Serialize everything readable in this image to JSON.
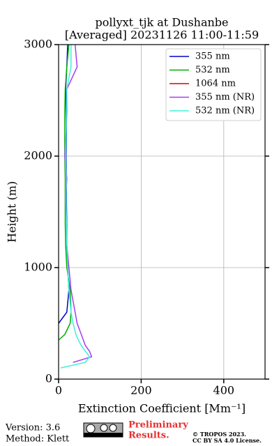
{
  "chart_data": {
    "type": "line",
    "title": "pollyxt_tjk at Dushanbe",
    "subtitle": "[Averaged] 20231126 11:00-11:59",
    "x_label": "Extinction Coefficient [Mm⁻¹]",
    "y_label": "Height (m)",
    "heights": [
      100,
      150,
      200,
      250,
      300,
      350,
      400,
      500,
      600,
      800,
      1000,
      1200,
      1400,
      1600,
      1800,
      2000,
      2200,
      2400,
      2600,
      2800,
      3000
    ],
    "series": [
      {
        "name": "355 nm",
        "color": "#0000cc",
        "values": [
          null,
          null,
          null,
          null,
          null,
          null,
          null,
          0,
          20,
          25,
          22,
          20,
          20,
          19,
          19,
          18,
          19,
          18,
          17,
          20,
          22
        ]
      },
      {
        "name": "532 nm",
        "color": "#00b000",
        "values": [
          null,
          null,
          null,
          null,
          null,
          0,
          15,
          28,
          30,
          28,
          20,
          17,
          16,
          16,
          16,
          15,
          15,
          15,
          16,
          20,
          25
        ]
      },
      {
        "name": "1064 nm",
        "color": "#e00000",
        "values": [
          null,
          null,
          null,
          null,
          null,
          null,
          null,
          null,
          null,
          null,
          null,
          null,
          null,
          null,
          null,
          null,
          null,
          null,
          null,
          null,
          null
        ]
      },
      {
        "name": "355 nm (NR)",
        "color": "#a040f0",
        "values": [
          null,
          35,
          80,
          75,
          65,
          60,
          55,
          45,
          40,
          30,
          25,
          20,
          20,
          17,
          20,
          15,
          18,
          20,
          20,
          45,
          40
        ]
      },
      {
        "name": "532 nm (NR)",
        "color": "#40f0d8",
        "values": [
          5,
          65,
          75,
          65,
          55,
          48,
          42,
          35,
          30,
          25,
          22,
          20,
          19,
          18,
          18,
          17,
          18,
          19,
          20,
          30,
          30
        ]
      }
    ],
    "xlim": [
      0,
      500
    ],
    "xticks": [
      0,
      200,
      400
    ],
    "ylim": [
      0,
      3000
    ],
    "yticks": [
      0,
      1000,
      2000,
      3000
    ],
    "grid": true,
    "legend": "upper right"
  },
  "footer": {
    "version": "Version: 3.6",
    "method": "Method: Klett",
    "preliminary": [
      "Preliminary",
      "Results."
    ],
    "copyright": "© TROPOS 2023.",
    "license": "CC BY SA 4.0 License."
  }
}
